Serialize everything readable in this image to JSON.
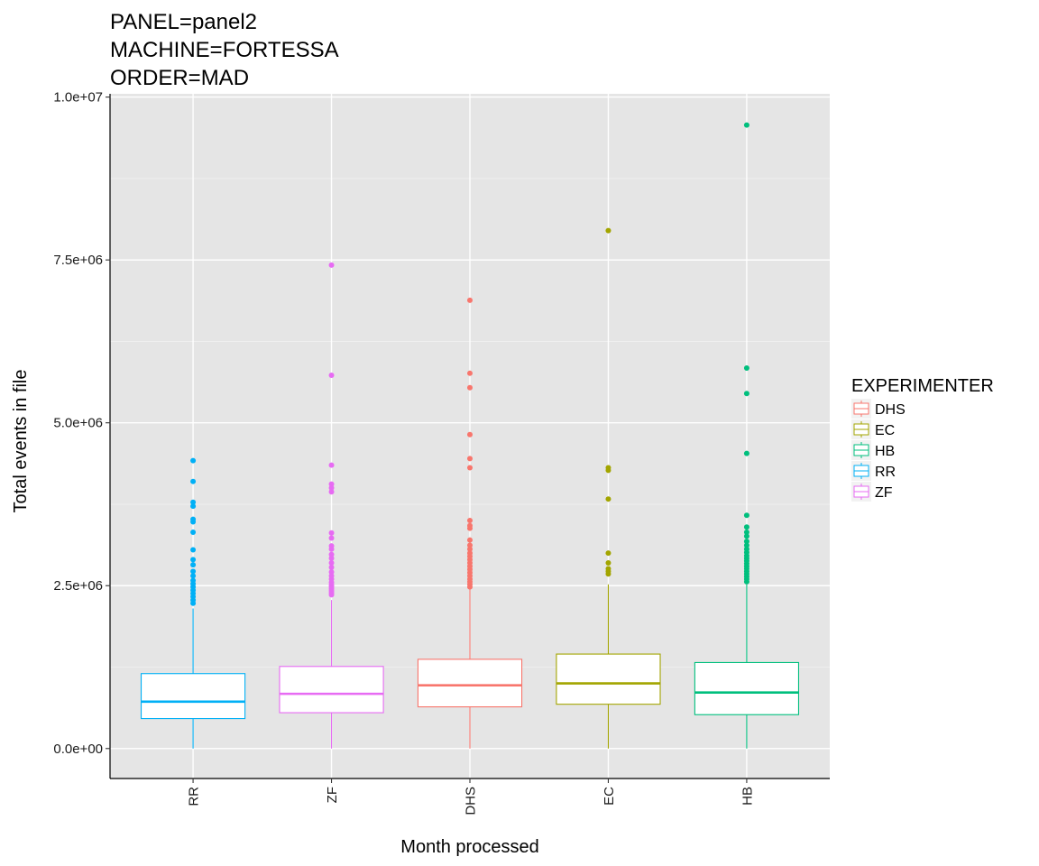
{
  "chart_data": {
    "type": "box",
    "title_lines": [
      "PANEL=panel2",
      "MACHINE=FORTESSA",
      "ORDER=MAD"
    ],
    "xlabel": "Month processed",
    "ylabel": "Total events in file",
    "ylim": [
      -460000,
      10050000
    ],
    "y_ticks": [
      0,
      2500000,
      5000000,
      7500000,
      10000000
    ],
    "y_tick_labels": [
      "0.0e+00",
      "2.5e+06",
      "5.0e+06",
      "7.5e+06",
      "1.0e+07"
    ],
    "categories": [
      "RR",
      "ZF",
      "DHS",
      "EC",
      "HB"
    ],
    "grid": true,
    "legend": {
      "title": "EXPERIMENTER",
      "position": "right",
      "entries": [
        "DHS",
        "EC",
        "HB",
        "RR",
        "ZF"
      ]
    },
    "colors": {
      "DHS": "#F8766D",
      "EC": "#A3A500",
      "HB": "#00BF7D",
      "RR": "#00B0F6",
      "ZF": "#E76BF3"
    },
    "boxes": [
      {
        "category": "RR",
        "group": "RR",
        "min": 0,
        "q1": 460000,
        "median": 720000,
        "q3": 1150000,
        "whisker_high": 2150000,
        "outliers": [
          2230000,
          2280000,
          2330000,
          2380000,
          2430000,
          2480000,
          2530000,
          2580000,
          2650000,
          2720000,
          2820000,
          2900000,
          3050000,
          3320000,
          3480000,
          3520000,
          3720000,
          3780000,
          4100000,
          4420000
        ]
      },
      {
        "category": "ZF",
        "group": "ZF",
        "min": 0,
        "q1": 550000,
        "median": 840000,
        "q3": 1260000,
        "whisker_high": 2280000,
        "outliers": [
          2360000,
          2390000,
          2420000,
          2450000,
          2480000,
          2510000,
          2550000,
          2600000,
          2650000,
          2710000,
          2780000,
          2850000,
          2920000,
          2980000,
          3060000,
          3110000,
          3230000,
          3310000,
          3940000,
          4000000,
          4060000,
          4350000,
          5730000,
          7420000
        ]
      },
      {
        "category": "DHS",
        "group": "DHS",
        "min": 0,
        "q1": 640000,
        "median": 970000,
        "q3": 1370000,
        "whisker_high": 2450000,
        "outliers": [
          2480000,
          2520000,
          2560000,
          2600000,
          2650000,
          2700000,
          2750000,
          2800000,
          2850000,
          2900000,
          2950000,
          3000000,
          3060000,
          3120000,
          3200000,
          3380000,
          3420000,
          3500000,
          4310000,
          4450000,
          4820000,
          5540000,
          5760000,
          6880000
        ]
      },
      {
        "category": "EC",
        "group": "EC",
        "min": 0,
        "q1": 680000,
        "median": 1000000,
        "q3": 1450000,
        "whisker_high": 2520000,
        "outliers": [
          2680000,
          2720000,
          2760000,
          2850000,
          3000000,
          3830000,
          4270000,
          4310000,
          7950000
        ]
      },
      {
        "category": "HB",
        "group": "HB",
        "min": 0,
        "q1": 520000,
        "median": 860000,
        "q3": 1320000,
        "whisker_high": 2520000,
        "outliers": [
          2560000,
          2600000,
          2640000,
          2680000,
          2720000,
          2760000,
          2800000,
          2840000,
          2880000,
          2920000,
          2960000,
          3010000,
          3060000,
          3120000,
          3180000,
          3260000,
          3320000,
          3400000,
          3580000,
          4530000,
          5450000,
          5840000,
          9570000
        ]
      }
    ]
  }
}
